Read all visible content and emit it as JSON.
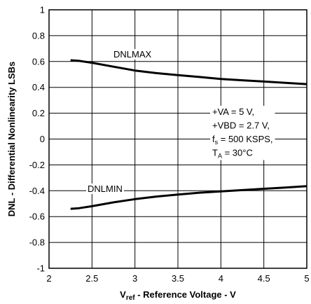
{
  "chart_data": {
    "type": "line",
    "xlabel_main": "V",
    "xlabel_sub": "ref",
    "xlabel_rest": " - Reference Voltage - V",
    "ylabel": "DNL - Differential Nonlinearity LSBs",
    "xlim": [
      2,
      5
    ],
    "ylim": [
      -1,
      1
    ],
    "x_ticks": [
      2,
      2.5,
      3,
      3.5,
      4,
      4.5,
      5
    ],
    "x_tick_labels": [
      "2",
      "2.5",
      "3",
      "3.5",
      "4",
      "4.5",
      "5"
    ],
    "y_ticks": [
      1,
      0.8,
      0.6,
      0.4,
      0.2,
      0,
      -0.2,
      -0.4,
      -0.6,
      -0.8,
      -1
    ],
    "y_tick_labels": [
      "1",
      "0.8",
      "0.6",
      "0.4",
      "0.2",
      "0",
      "-0.2",
      "-0.4",
      "-0.6",
      "-0.8",
      "-1"
    ],
    "grid": true,
    "series": [
      {
        "name": "DNLMAX",
        "x": [
          2.25,
          2.35,
          2.5,
          2.75,
          3.0,
          3.25,
          3.5,
          3.75,
          4.0,
          4.25,
          4.5,
          4.75,
          5.0
        ],
        "y": [
          0.61,
          0.605,
          0.59,
          0.56,
          0.53,
          0.51,
          0.495,
          0.48,
          0.465,
          0.455,
          0.445,
          0.435,
          0.425
        ]
      },
      {
        "name": "DNLMIN",
        "x": [
          2.25,
          2.35,
          2.5,
          2.75,
          3.0,
          3.25,
          3.5,
          3.75,
          4.0,
          4.25,
          4.5,
          4.75,
          5.0
        ],
        "y": [
          -0.54,
          -0.535,
          -0.52,
          -0.49,
          -0.465,
          -0.445,
          -0.43,
          -0.415,
          -0.405,
          -0.395,
          -0.385,
          -0.375,
          -0.365
        ]
      }
    ],
    "conditions": [
      {
        "text": "+VA = 5 V,"
      },
      {
        "text": "+VBD = 2.7 V,"
      },
      {
        "pre": "f",
        "sub": "s",
        "post": " = 500 KSPS,"
      },
      {
        "pre": "T",
        "sub": "A",
        "post": " = 30°C"
      }
    ]
  }
}
